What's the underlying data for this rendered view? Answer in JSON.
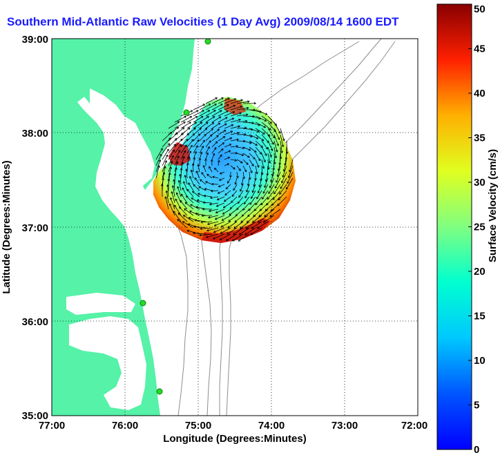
{
  "title": "Southern Mid-Atlantic Raw Velocities (1 Day Avg) 2009/08/14 1600 EDT",
  "axes": {
    "xlabel": "Longitude (Degrees:Minutes)",
    "ylabel": "Latitude (Degrees:Minutes)",
    "x_ticks": [
      "77:00",
      "76:00",
      "75:00",
      "74:00",
      "73:00",
      "72:00"
    ],
    "y_ticks": [
      "39:00",
      "38:00",
      "37:00",
      "36:00",
      "35:00"
    ]
  },
  "colorbar": {
    "label": "Surface Velocity (cm/s)",
    "ticks": [
      "50",
      "45",
      "40",
      "35",
      "30",
      "25",
      "20",
      "15",
      "10",
      "5",
      "0"
    ],
    "min": 0,
    "max": 50
  },
  "colors": {
    "land": "#55f2a8",
    "water": "#ffffff",
    "title": "#1a1aff",
    "station": "#22dd22"
  }
}
